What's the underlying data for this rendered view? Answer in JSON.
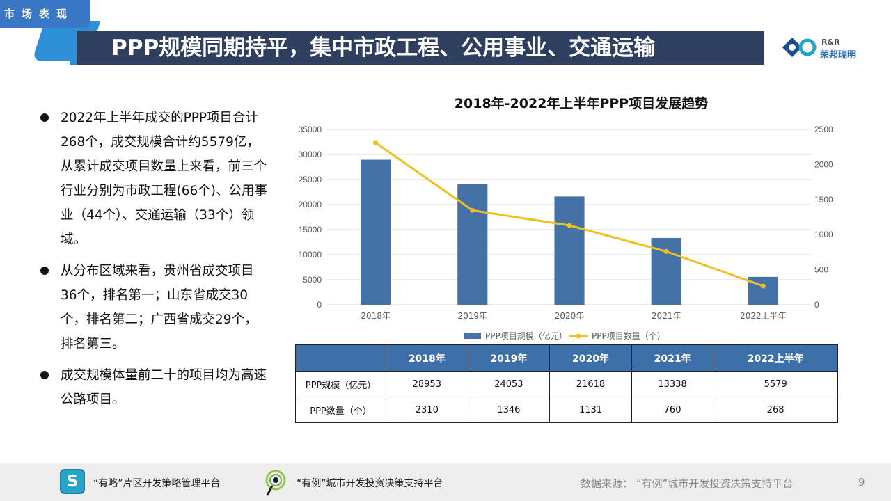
{
  "section": {
    "label": "市场表现"
  },
  "header": {
    "title": "PPP规模同期持平，集中市政工程、公用事业、交通运输"
  },
  "logo": {
    "en": "R&R",
    "cn": "荣邦瑞明"
  },
  "bullets": [
    "2022年上半年成交的PPP项目合计268个，成交规模合计约5579亿，从累计成交项目数量上来看，前三个行业分别为市政工程(66个)、公用事业（44个）、交通运输（33个）领域。",
    "从分布区域来看，贵州省成交项目36个，排名第一；山东省成交30个，排名第二；广西省成交29个，排名第三。",
    "成交规模体量前二十的项目均为高速公路项目。"
  ],
  "chart_data": {
    "type": "bar",
    "title": "2018年-2022年上半年PPP项目发展趋势",
    "categories": [
      "2018年",
      "2019年",
      "2020年",
      "2021年",
      "2022上半年"
    ],
    "series": [
      {
        "name": "PPP项目规模（亿元）",
        "type": "bar",
        "axis": "left",
        "color": "#4472a8",
        "values": [
          28953,
          24053,
          21618,
          13338,
          5579
        ]
      },
      {
        "name": "PPP项目数量（个）",
        "type": "line",
        "axis": "right",
        "color": "#f0c020",
        "values": [
          2310,
          1346,
          1131,
          760,
          268
        ]
      }
    ],
    "y_left": {
      "min": 0,
      "max": 35000,
      "ticks": [
        0,
        5000,
        10000,
        15000,
        20000,
        25000,
        30000,
        35000
      ]
    },
    "y_right": {
      "min": 0,
      "max": 2500,
      "ticks": [
        0,
        500,
        1000,
        1500,
        2000,
        2500
      ]
    },
    "grid": true,
    "legend_position": "bottom"
  },
  "table": {
    "headers": [
      "",
      "2018年",
      "2019年",
      "2020年",
      "2021年",
      "2022上半年"
    ],
    "rows": [
      [
        "PPP规模（亿元）",
        "28953",
        "24053",
        "21618",
        "13338",
        "5579"
      ],
      [
        "PPP数量（个）",
        "2310",
        "1346",
        "1131",
        "760",
        "268"
      ]
    ]
  },
  "footer": {
    "platform1": "“有略”片区开发策略管理平台",
    "platform2": "“有例”城市开发投资决策支持平台",
    "source": "数据来源：  “有例”城市开发投资决策支持平台",
    "page": "9"
  },
  "colors": {
    "title_bg": "#2e3f5f",
    "accent": "#2d8fd6",
    "table_header": "#3d6fa8"
  }
}
